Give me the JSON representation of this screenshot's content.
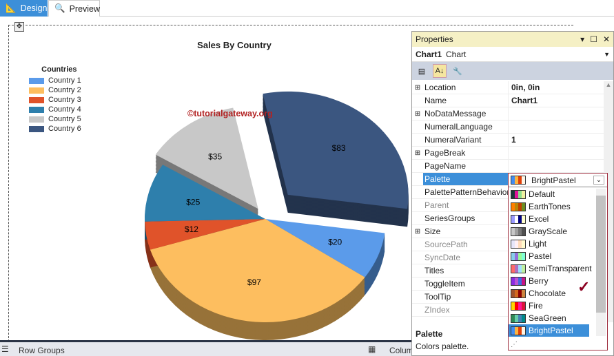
{
  "tabs": [
    {
      "label": "Design",
      "active": true
    },
    {
      "label": "Preview",
      "active": false
    }
  ],
  "chart_data": {
    "type": "pie",
    "title": "Sales By Country",
    "legend_title": "Countries",
    "legend_placement": "top-left",
    "categories": [
      "Country 1",
      "Country 2",
      "Country 3",
      "Country 4",
      "Country 5",
      "Country 6"
    ],
    "values": [
      20,
      97,
      12,
      25,
      35,
      83
    ],
    "labels": [
      "$20",
      "$97",
      "$12",
      "$25",
      "$35",
      "$83"
    ],
    "colors": [
      "#5b9bea",
      "#fdbe5f",
      "#e0532a",
      "#2e7fac",
      "#c8c8c8",
      "#3b5680"
    ]
  },
  "watermark": "©tutorialgateway.org",
  "bottom": {
    "row_groups": "Row Groups",
    "column_groups": "Colum"
  },
  "properties": {
    "title": "Properties",
    "object_name": "Chart1",
    "object_type": "Chart",
    "rows": [
      {
        "name": "Location",
        "value": "0in, 0in",
        "expandable": true
      },
      {
        "name": "Name",
        "value": "Chart1"
      },
      {
        "name": "NoDataMessage",
        "value": "",
        "expandable": true
      },
      {
        "name": "NumeralLanguage",
        "value": ""
      },
      {
        "name": "NumeralVariant",
        "value": "1"
      },
      {
        "name": "PageBreak",
        "value": "",
        "expandable": true
      },
      {
        "name": "PageName",
        "value": ""
      },
      {
        "name": "Palette",
        "value": "BrightPastel",
        "selected": true
      },
      {
        "name": "PalettePatternBehavior",
        "value": ""
      },
      {
        "name": "Parent",
        "value": "",
        "dim": true
      },
      {
        "name": "SeriesGroups",
        "value": ""
      },
      {
        "name": "Size",
        "value": "",
        "expandable": true
      },
      {
        "name": "SourcePath",
        "value": "",
        "dim": true
      },
      {
        "name": "SyncDate",
        "value": "",
        "dim": true
      },
      {
        "name": "Titles",
        "value": ""
      },
      {
        "name": "ToggleItem",
        "value": ""
      },
      {
        "name": "ToolTip",
        "value": ""
      },
      {
        "name": "ZIndex",
        "value": "",
        "dim": true
      }
    ],
    "description_title": "Palette",
    "description": "Colors palette."
  },
  "palette_dropdown": {
    "value": "BrightPastel",
    "options": [
      {
        "label": "Default",
        "colors": [
          "#1a3a3a",
          "#e0129a",
          "#8fe08f",
          "#f0f0a0"
        ]
      },
      {
        "label": "EarthTones",
        "colors": [
          "#ff8000",
          "#b8860b",
          "#c04000",
          "#6b8e23"
        ]
      },
      {
        "label": "Excel",
        "colors": [
          "#9999ff",
          "#ffffff",
          "#000080",
          "#ffffcc"
        ]
      },
      {
        "label": "GrayScale",
        "colors": [
          "#c8c8c8",
          "#a0a0a0",
          "#787878",
          "#505050"
        ]
      },
      {
        "label": "Light",
        "colors": [
          "#e6e6fa",
          "#fff0f5",
          "#ffdab9",
          "#fffacd"
        ]
      },
      {
        "label": "Pastel",
        "colors": [
          "#87ceeb",
          "#9370db",
          "#98fb98",
          "#7fffd4"
        ]
      },
      {
        "label": "SemiTransparent",
        "colors": [
          "#ff6b6b",
          "#b070c0",
          "#a0e0ff",
          "#c0f0a0"
        ]
      },
      {
        "label": "Berry",
        "colors": [
          "#8a2be2",
          "#ba55d3",
          "#4169e1",
          "#c71585"
        ]
      },
      {
        "label": "Chocolate",
        "colors": [
          "#a0522d",
          "#d2691e",
          "#8b0000",
          "#cd853f"
        ]
      },
      {
        "label": "Fire",
        "colors": [
          "#ffd700",
          "#ff0000",
          "#ff1493",
          "#dc143c"
        ]
      },
      {
        "label": "SeaGreen",
        "colors": [
          "#2e8b57",
          "#66cdaa",
          "#4682b4",
          "#008b8b"
        ]
      },
      {
        "label": "BrightPastel",
        "colors": [
          "#418cf0",
          "#fcb441",
          "#e0400a",
          "#fdf5e6"
        ],
        "selected": true
      }
    ]
  }
}
